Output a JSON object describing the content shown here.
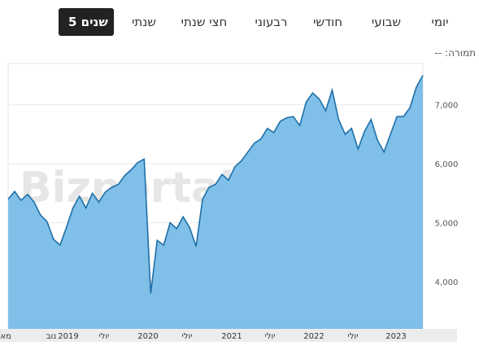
{
  "tabs": [
    {
      "label": "יומי",
      "active": false
    },
    {
      "label": "שבועי",
      "active": false
    },
    {
      "label": "חודשי",
      "active": false
    },
    {
      "label": "רבעוני",
      "active": false
    },
    {
      "label": "חצי שנתי",
      "active": false
    },
    {
      "label": "שנתי",
      "active": false
    },
    {
      "label": "5 שנים",
      "active": true
    }
  ],
  "change": {
    "label": "תמורה:",
    "value": "--"
  },
  "watermark": "Bizportal",
  "colors": {
    "line": "#1e6fa8",
    "area": "#7fbfe8",
    "active_tab": "#222222"
  },
  "chart_data": {
    "type": "area",
    "ylim": [
      3200,
      7700
    ],
    "y_ticks": [
      {
        "value": 4000,
        "label": "4,000"
      },
      {
        "value": 5000,
        "label": "5,000"
      },
      {
        "value": 6000,
        "label": "6,000"
      },
      {
        "value": 7000,
        "label": "7,000"
      }
    ],
    "x_ticks": [
      "מאי",
      "נוב",
      "2019",
      "יולי",
      "2020",
      "יולי",
      "2021",
      "יולי",
      "2022",
      "יולי",
      "2023"
    ],
    "grid": true,
    "x": [
      "2018-05",
      "2018-06",
      "2018-07",
      "2018-08",
      "2018-09",
      "2018-10",
      "2018-11",
      "2018-12",
      "2019-01",
      "2019-02",
      "2019-03",
      "2019-04",
      "2019-05",
      "2019-06",
      "2019-07",
      "2019-08",
      "2019-09",
      "2019-10",
      "2019-11",
      "2019-12",
      "2020-01",
      "2020-02",
      "2020-03",
      "2020-04",
      "2020-05",
      "2020-06",
      "2020-07",
      "2020-08",
      "2020-09",
      "2020-10",
      "2020-11",
      "2020-12",
      "2021-01",
      "2021-02",
      "2021-03",
      "2021-04",
      "2021-05",
      "2021-06",
      "2021-07",
      "2021-08",
      "2021-09",
      "2021-10",
      "2021-11",
      "2021-12",
      "2022-01",
      "2022-02",
      "2022-03",
      "2022-04",
      "2022-05",
      "2022-06",
      "2022-07",
      "2022-08",
      "2022-09",
      "2022-10",
      "2022-11",
      "2022-12",
      "2023-01",
      "2023-02",
      "2023-03",
      "2023-04",
      "2023-05",
      "2023-06",
      "2023-07",
      "2023-08",
      "2023-09"
    ],
    "values": [
      5400,
      5530,
      5380,
      5480,
      5350,
      5130,
      5020,
      4720,
      4620,
      4920,
      5250,
      5450,
      5250,
      5500,
      5350,
      5520,
      5600,
      5650,
      5800,
      5900,
      6020,
      6080,
      3800,
      4700,
      4620,
      5000,
      4900,
      5100,
      4920,
      4600,
      5400,
      5600,
      5650,
      5820,
      5720,
      5950,
      6050,
      6200,
      6350,
      6420,
      6600,
      6530,
      6720,
      6780,
      6800,
      6650,
      7050,
      7200,
      7100,
      6900,
      7250,
      6750,
      6500,
      6600,
      6250,
      6550,
      6750,
      6400,
      6200,
      6500,
      6800,
      6800,
      6950,
      7300,
      7500
    ]
  }
}
